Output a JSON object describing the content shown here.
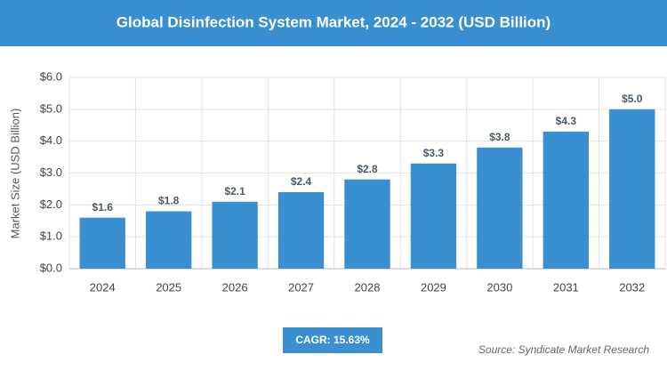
{
  "chart_data": {
    "type": "bar",
    "title": "Global Disinfection System Market, 2024 - 2032 (USD Billion)",
    "y_label": "Market Size (USD Billion)",
    "categories": [
      "2024",
      "2025",
      "2026",
      "2027",
      "2028",
      "2029",
      "2030",
      "2031",
      "2032"
    ],
    "values": [
      1.6,
      1.8,
      2.1,
      2.4,
      2.8,
      3.3,
      3.8,
      4.3,
      5.0
    ],
    "value_labels": [
      "$1.6",
      "$1.8",
      "$2.1",
      "$2.4",
      "$2.8",
      "$3.3",
      "$3.8",
      "$4.3",
      "$5.0"
    ],
    "color": "#3a8fd0",
    "ylim": [
      0,
      6
    ],
    "yticks": [
      {
        "value": 0,
        "label": "$0.0"
      },
      {
        "value": 1,
        "label": "$1.0"
      },
      {
        "value": 2,
        "label": "$2.0"
      },
      {
        "value": 3,
        "label": "$3.0"
      },
      {
        "value": 4,
        "label": "$4.0"
      },
      {
        "value": 5,
        "label": "$5.0"
      },
      {
        "value": 6,
        "label": "$6.0"
      }
    ],
    "grid": true,
    "cagr": "CAGR: 15.63%",
    "source": "Source: Syndicate Market Research"
  }
}
